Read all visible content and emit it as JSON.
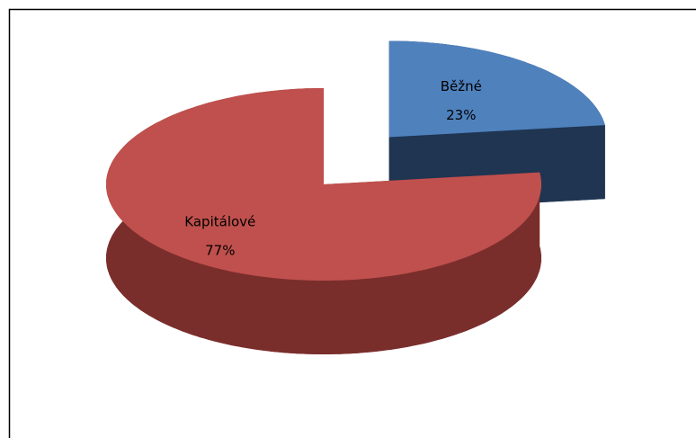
{
  "chart_data": {
    "type": "pie",
    "three_d": true,
    "exploded": [
      "Běžné"
    ],
    "categories": [
      "Běžné",
      "Kapitálové"
    ],
    "values": [
      23,
      77
    ],
    "value_labels": [
      "23%",
      "77%"
    ],
    "colors": [
      "#4f81bd",
      "#c0504d"
    ],
    "side_colors": [
      "#1f3552",
      "#7a2e2c"
    ]
  }
}
